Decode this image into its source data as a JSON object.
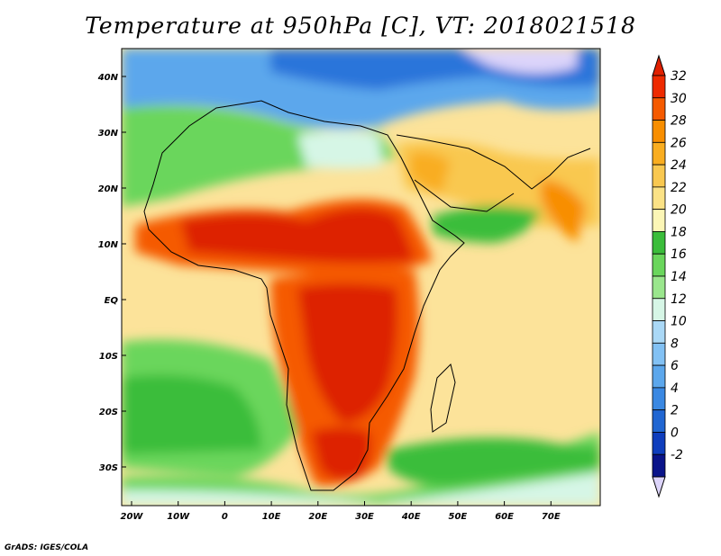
{
  "title": "Temperature at 950hPa [C], VT: 2018021518",
  "credit": "GrADS: IGES/COLA",
  "lat_ticks": [
    "40N",
    "30N",
    "20N",
    "10N",
    "EQ",
    "10S",
    "20S",
    "30S"
  ],
  "lon_ticks": [
    "20W",
    "10W",
    "0",
    "10E",
    "20E",
    "30E",
    "40E",
    "50E",
    "60E",
    "70E"
  ],
  "colorbar": {
    "labels": [
      "32",
      "30",
      "28",
      "26",
      "24",
      "22",
      "20",
      "18",
      "16",
      "14",
      "12",
      "10",
      "8",
      "6",
      "4",
      "2",
      "0",
      "-2"
    ],
    "colors": [
      "#ee2a00",
      "#f55a00",
      "#f88e00",
      "#f9ad20",
      "#f9c850",
      "#fbe286",
      "#fcf6b6",
      "#3bbd3b",
      "#6ad65c",
      "#9ae68d",
      "#d6f6e6",
      "#aad8f6",
      "#82c1f4",
      "#5ca7ec",
      "#3a88e2",
      "#2066d2",
      "#0f3ebd",
      "#0a148a"
    ],
    "top_cap": "#e02000",
    "bottom_cap": "#dcd4fa"
  }
}
